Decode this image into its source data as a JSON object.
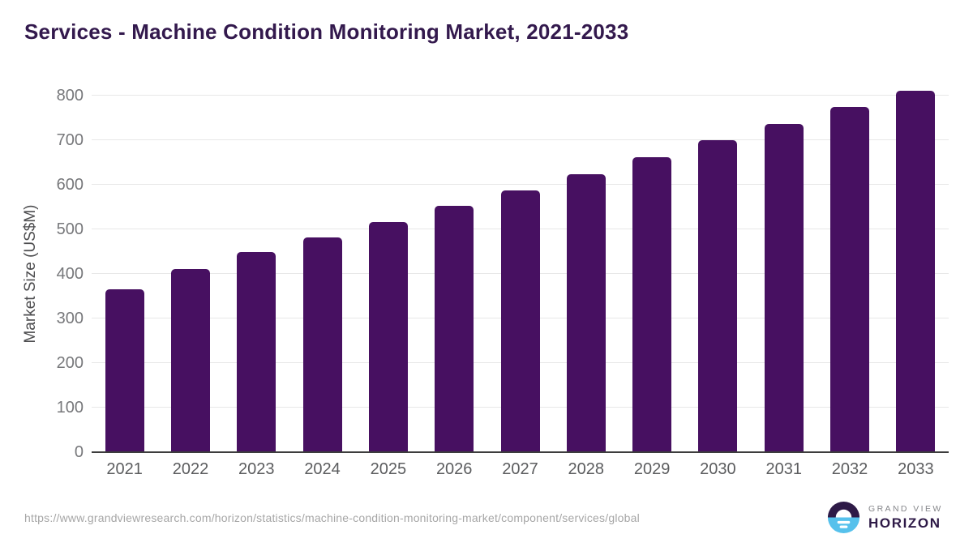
{
  "title": "Services - Machine Condition Monitoring Market, 2021-2033",
  "source_url": "https://www.grandviewresearch.com/horizon/statistics/machine-condition-monitoring-market/component/services/global",
  "logo": {
    "top_text": "GRAND VIEW",
    "bottom_text": "HORIZON"
  },
  "colors": {
    "bar": "#471061",
    "title_text": "#33194d",
    "y_tick_text": "#77787b",
    "x_tick_text": "#5b5c5e",
    "grid": "#e8e8e8",
    "baseline": "#3d3d3d",
    "url_text": "#a6a6a6",
    "logo_dark": "#2e1a47",
    "logo_blue": "#56c1ec"
  },
  "chart_data": {
    "type": "bar",
    "title": "Services - Machine Condition Monitoring Market, 2021-2033",
    "categories": [
      "2021",
      "2022",
      "2023",
      "2024",
      "2025",
      "2026",
      "2027",
      "2028",
      "2029",
      "2030",
      "2031",
      "2032",
      "2033"
    ],
    "values": [
      366,
      411,
      448,
      481,
      516,
      552,
      587,
      624,
      661,
      699,
      736,
      773,
      811
    ],
    "xlabel": "",
    "ylabel": "Market Size (US$M)",
    "ylim": [
      0,
      832
    ],
    "yticks": [
      0,
      100,
      200,
      300,
      400,
      500,
      600,
      700,
      800
    ],
    "grid": true,
    "legend": "none",
    "bar_color": "#471061"
  }
}
